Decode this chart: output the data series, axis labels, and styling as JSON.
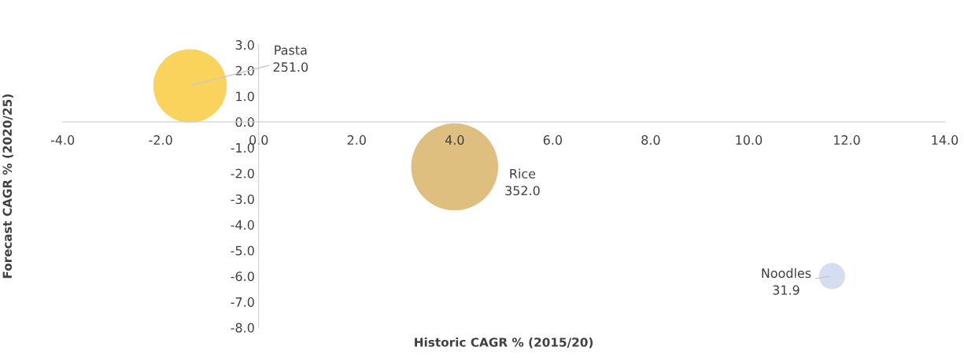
{
  "chart_data": {
    "type": "bubble",
    "xlabel": "Historic CAGR % (2015/20)",
    "ylabel": "Forecast CAGR % (2020/25)",
    "xlim": [
      -4,
      14
    ],
    "ylim": [
      -8,
      3
    ],
    "xticks": [
      {
        "value": -4,
        "label": "-4.0"
      },
      {
        "value": -2,
        "label": "-2.0"
      },
      {
        "value": 0,
        "label": "0.0"
      },
      {
        "value": 2,
        "label": "2.0"
      },
      {
        "value": 4,
        "label": "4.0"
      },
      {
        "value": 6,
        "label": "6.0"
      },
      {
        "value": 8,
        "label": "8.0"
      },
      {
        "value": 10,
        "label": "10.0"
      },
      {
        "value": 12,
        "label": "12.0"
      },
      {
        "value": 14,
        "label": "14.0"
      }
    ],
    "yticks": [
      {
        "value": -8,
        "label": "-8.0"
      },
      {
        "value": -7,
        "label": "-7.0"
      },
      {
        "value": -6,
        "label": "-6.0"
      },
      {
        "value": -5,
        "label": "-5.0"
      },
      {
        "value": -4,
        "label": "-4.0"
      },
      {
        "value": -3,
        "label": "-3.0"
      },
      {
        "value": -2,
        "label": "-2.0"
      },
      {
        "value": -1,
        "label": "-1.0"
      },
      {
        "value": 0,
        "label": "0.0"
      },
      {
        "value": 1,
        "label": "1.0"
      },
      {
        "value": 2,
        "label": "2.0"
      },
      {
        "value": 3,
        "label": "3.0"
      }
    ],
    "grid": false,
    "series": [
      {
        "name": "Pasta",
        "color": "#fad35c",
        "x": [
          -1.4
        ],
        "values": [
          1.4
        ],
        "sizes": [
          251.0
        ],
        "value_labels": [
          "251.0"
        ]
      },
      {
        "name": "Rice",
        "color": "#dfbf80",
        "x": [
          4.0
        ],
        "values": [
          -1.75
        ],
        "sizes": [
          352.0
        ],
        "value_labels": [
          "352.0"
        ]
      },
      {
        "name": "Noodles",
        "color": "#d5ddf0",
        "x": [
          11.7
        ],
        "values": [
          -6.0
        ],
        "sizes": [
          31.9
        ],
        "value_labels": [
          "31.9"
        ]
      }
    ]
  }
}
